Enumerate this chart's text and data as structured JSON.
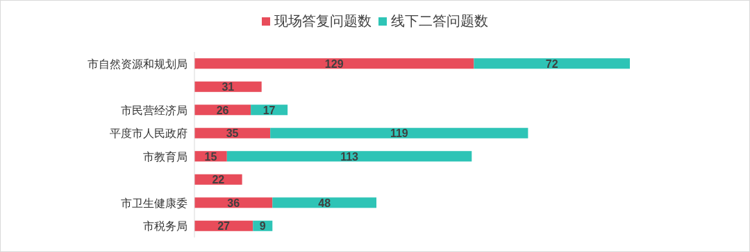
{
  "chart_data": {
    "type": "bar",
    "orientation": "horizontal",
    "stacked": true,
    "data_labels": true,
    "legend": "top",
    "categories": [
      "市自然资源和规划局",
      null,
      "市民营经济局",
      "平度市人民政府",
      "市教育局",
      null,
      "市卫生健康委",
      "市税务局"
    ],
    "series": [
      {
        "name": "现场答复问题数",
        "color": "#e84c5a",
        "values": [
          129,
          31,
          26,
          35,
          15,
          22,
          36,
          27
        ]
      },
      {
        "name": "线下二答问题数",
        "color": "#2ec4b6",
        "values": [
          72,
          null,
          17,
          119,
          113,
          null,
          48,
          9
        ]
      }
    ]
  }
}
